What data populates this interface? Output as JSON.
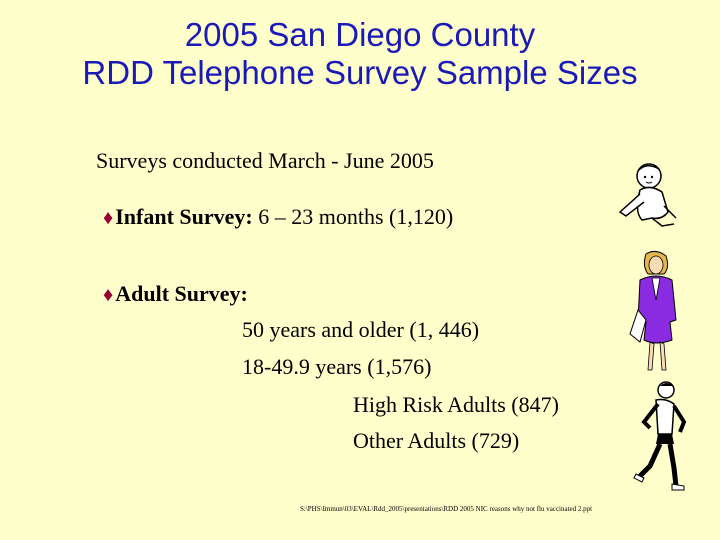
{
  "title": {
    "line1": "2005 San Diego County",
    "line2": "RDD Telephone Survey Sample Sizes"
  },
  "subtitle": "Surveys conducted March - June 2005",
  "bullet_glyph": "♦",
  "infant": {
    "label": "Infant Survey:",
    "detail": " 6 – 23 months (1,120)"
  },
  "adult": {
    "label": "Adult Survey:",
    "older": "50 years and older (1, 446)",
    "younger": "18-49.9 years (1,576)",
    "high_risk": "High Risk Adults (847)",
    "other": "Other Adults (729)"
  },
  "file_path": "S:\\PHS\\Immun\\03\\EVAL\\Rdd_2005\\presentations\\RDD 2005 NIC reasons why not flu vaccinated 2.ppt",
  "colors": {
    "background": "#FFFFCC",
    "title": "#1A1AB8",
    "bullet": "#990033",
    "suit": "#8A2BE2"
  },
  "illustrations": [
    "baby-clipart",
    "businesswoman-clipart",
    "runner-clipart"
  ]
}
